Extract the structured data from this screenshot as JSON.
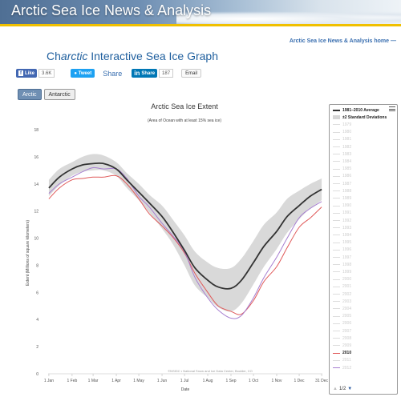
{
  "header": {
    "banner_title": "Arctic Sea Ice News & Analysis",
    "home_link": "Arctic Sea Ice News & Analysis home —"
  },
  "page": {
    "title_prefix": "Ch",
    "title_italic": "arctic",
    "title_rest": " Interactive Sea Ice Graph"
  },
  "share": {
    "facebook_label": "Like",
    "facebook_count": "3.6K",
    "twitter_label": "Tweet",
    "share_label": "Share",
    "linkedin_label": "Share",
    "linkedin_count": "187",
    "email_label": "Email"
  },
  "tabs": [
    {
      "label": "Arctic",
      "active": true
    },
    {
      "label": "Antarctic",
      "active": false
    }
  ],
  "colors": {
    "average": "#333333",
    "std_band": "#d9d9d9",
    "y2010": "#e05a5a",
    "y2012": "#a77fd0",
    "link": "#3a6fb0"
  },
  "legend": {
    "pager": "1/2",
    "items": [
      {
        "label": "1981–2010 Average",
        "kind": "avg"
      },
      {
        "label": "±2 Standard Deviations",
        "kind": "std"
      },
      {
        "label": "1979",
        "kind": "yr"
      },
      {
        "label": "1980",
        "kind": "yr"
      },
      {
        "label": "1981",
        "kind": "yr"
      },
      {
        "label": "1982",
        "kind": "yr"
      },
      {
        "label": "1983",
        "kind": "yr"
      },
      {
        "label": "1984",
        "kind": "yr"
      },
      {
        "label": "1985",
        "kind": "yr"
      },
      {
        "label": "1986",
        "kind": "yr"
      },
      {
        "label": "1987",
        "kind": "yr"
      },
      {
        "label": "1988",
        "kind": "yr"
      },
      {
        "label": "1989",
        "kind": "yr"
      },
      {
        "label": "1990",
        "kind": "yr"
      },
      {
        "label": "1991",
        "kind": "yr"
      },
      {
        "label": "1992",
        "kind": "yr"
      },
      {
        "label": "1993",
        "kind": "yr"
      },
      {
        "label": "1994",
        "kind": "yr"
      },
      {
        "label": "1995",
        "kind": "yr"
      },
      {
        "label": "1996",
        "kind": "yr"
      },
      {
        "label": "1997",
        "kind": "yr"
      },
      {
        "label": "1998",
        "kind": "yr"
      },
      {
        "label": "1999",
        "kind": "yr"
      },
      {
        "label": "2000",
        "kind": "yr"
      },
      {
        "label": "2001",
        "kind": "yr"
      },
      {
        "label": "2002",
        "kind": "yr"
      },
      {
        "label": "2003",
        "kind": "yr"
      },
      {
        "label": "2004",
        "kind": "yr"
      },
      {
        "label": "2005",
        "kind": "yr"
      },
      {
        "label": "2006",
        "kind": "yr"
      },
      {
        "label": "2007",
        "kind": "yr"
      },
      {
        "label": "2008",
        "kind": "yr"
      },
      {
        "label": "2009",
        "kind": "yr"
      },
      {
        "label": "2010",
        "kind": "y2010"
      },
      {
        "label": "2011",
        "kind": "yr"
      },
      {
        "label": "2012",
        "kind": "y2012"
      }
    ]
  },
  "chart_data": {
    "type": "line",
    "title": "Arctic Sea Ice Extent",
    "subtitle": "(Area of Ocean with at least 15% sea ice)",
    "xlabel": "Date",
    "ylabel": "Extent (Millions of square kilometers)",
    "credit": "©NSIDC • National Snow and Ice Data Center, Boulder, CO",
    "ylim": [
      0,
      18
    ],
    "yticks": [
      0,
      2,
      4,
      6,
      8,
      10,
      12,
      14,
      16,
      18
    ],
    "xlim": [
      0,
      366
    ],
    "xticks": [
      {
        "label": "1 Jan",
        "day": 1
      },
      {
        "label": "1 Feb",
        "day": 32
      },
      {
        "label": "1 Mar",
        "day": 60
      },
      {
        "label": "1 Apr",
        "day": 91
      },
      {
        "label": "1 May",
        "day": 121
      },
      {
        "label": "1 Jun",
        "day": 152
      },
      {
        "label": "1 Jul",
        "day": 182
      },
      {
        "label": "1 Aug",
        "day": 213
      },
      {
        "label": "1 Sep",
        "day": 244
      },
      {
        "label": "1 Oct",
        "day": 274
      },
      {
        "label": "1 Nov",
        "day": 305
      },
      {
        "label": "1 Dec",
        "day": 335
      },
      {
        "label": "31 Dec",
        "day": 365
      }
    ],
    "x_days": [
      1,
      15,
      32,
      46,
      60,
      74,
      91,
      105,
      121,
      135,
      152,
      166,
      182,
      196,
      213,
      227,
      244,
      258,
      274,
      288,
      305,
      319,
      335,
      350,
      365
    ],
    "series": [
      {
        "name": "1981–2010 Average",
        "values": [
          13.7,
          14.5,
          15.1,
          15.4,
          15.5,
          15.5,
          15.1,
          14.3,
          13.4,
          12.6,
          11.6,
          10.5,
          9.1,
          7.8,
          6.9,
          6.4,
          6.3,
          6.9,
          8.2,
          9.4,
          10.5,
          11.6,
          12.4,
          13.1,
          13.6
        ]
      },
      {
        "name": "±2 Standard Deviations",
        "band": true,
        "lower": [
          13.1,
          13.9,
          14.6,
          14.9,
          15.0,
          15.0,
          14.6,
          13.7,
          12.8,
          11.9,
          10.7,
          9.6,
          8.0,
          6.5,
          5.6,
          4.9,
          4.6,
          5.2,
          6.6,
          7.9,
          9.2,
          10.4,
          11.4,
          12.2,
          12.8
        ],
        "upper": [
          14.3,
          15.1,
          15.6,
          16.0,
          16.2,
          16.1,
          15.6,
          14.8,
          14.0,
          13.2,
          12.4,
          11.4,
          10.2,
          9.0,
          8.2,
          7.8,
          7.8,
          8.5,
          9.8,
          11.0,
          11.9,
          12.9,
          13.5,
          14.0,
          14.4
        ]
      },
      {
        "name": "2010",
        "values": [
          12.9,
          13.7,
          14.3,
          14.4,
          14.5,
          14.5,
          14.6,
          14.0,
          12.9,
          11.8,
          10.9,
          10.1,
          8.9,
          7.4,
          6.0,
          5.0,
          4.6,
          4.4,
          5.4,
          6.8,
          7.9,
          9.3,
          10.8,
          11.5,
          12.3
        ]
      },
      {
        "name": "2012",
        "values": [
          13.3,
          14.0,
          14.5,
          14.9,
          15.2,
          15.1,
          15.1,
          14.4,
          13.1,
          12.3,
          11.1,
          10.2,
          9.0,
          7.1,
          5.6,
          4.7,
          4.1,
          4.3,
          5.6,
          7.1,
          8.6,
          10.0,
          11.5,
          12.2,
          12.7
        ]
      }
    ],
    "legend_position": "right",
    "grid": false
  }
}
